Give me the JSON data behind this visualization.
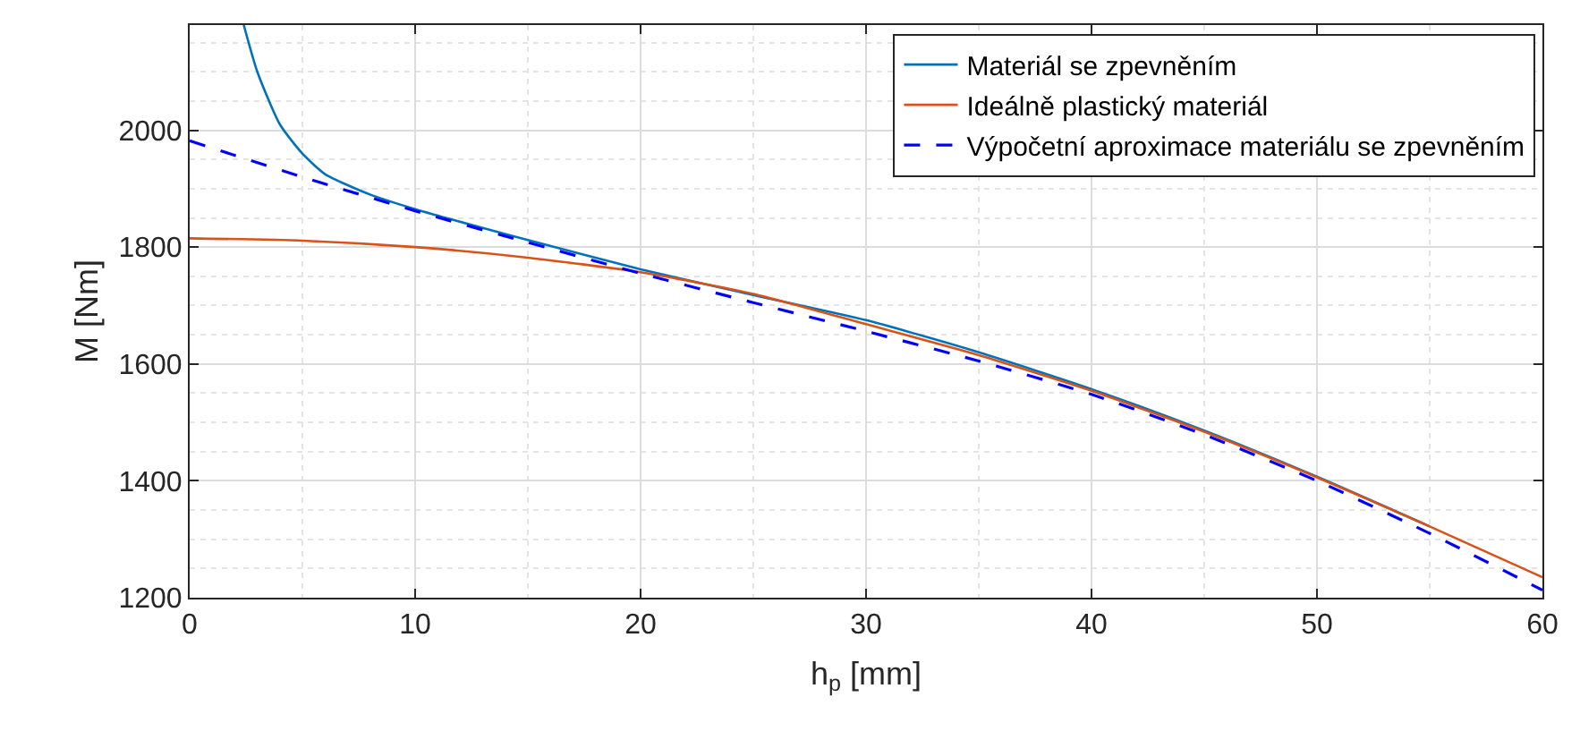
{
  "chart_data": {
    "type": "line",
    "xlabel": "h$_{p}$ [mm]",
    "ylabel": "M [Nm]",
    "xlim": [
      0,
      60
    ],
    "xticks": [
      0,
      10,
      20,
      30,
      40,
      50,
      60
    ],
    "ylim": [
      1200,
      2180
    ],
    "yticks": [
      1200,
      1400,
      1600,
      1800,
      2000
    ],
    "grid": true,
    "legend": "top right",
    "marker": "none",
    "series": [
      {
        "name": "Materiál se zpevněním",
        "color": "#0072bd",
        "line_style": "solid",
        "x": [
          2.4,
          3,
          4,
          5,
          6,
          8,
          10,
          15,
          20,
          25,
          30,
          35,
          40,
          45,
          50,
          55
        ],
        "values": [
          2180,
          2100,
          2010,
          1960,
          1925,
          1890,
          1865,
          1812,
          1762,
          1718,
          1675,
          1620,
          1557,
          1486,
          1407,
          1322
        ]
      },
      {
        "name": "Ideálně plastický materiál",
        "color": "#d95319",
        "line_style": "solid",
        "x": [
          0,
          5,
          10,
          15,
          20,
          25,
          30,
          35,
          40,
          45,
          50,
          55,
          60
        ],
        "values": [
          1815,
          1811,
          1800,
          1782,
          1757,
          1720,
          1668,
          1615,
          1554,
          1484,
          1406,
          1322,
          1235
        ]
      },
      {
        "name": "Výpočetní aproximace materiálu se zpevněním",
        "color": "#0000ff",
        "line_style": "dashed",
        "x": [
          0,
          5,
          10,
          15,
          20,
          25,
          30,
          35,
          40,
          45,
          50,
          55,
          60
        ],
        "values": [
          1982,
          1920,
          1862,
          1808,
          1755,
          1705,
          1656,
          1605,
          1548,
          1479,
          1400,
          1310,
          1213
        ]
      }
    ]
  }
}
